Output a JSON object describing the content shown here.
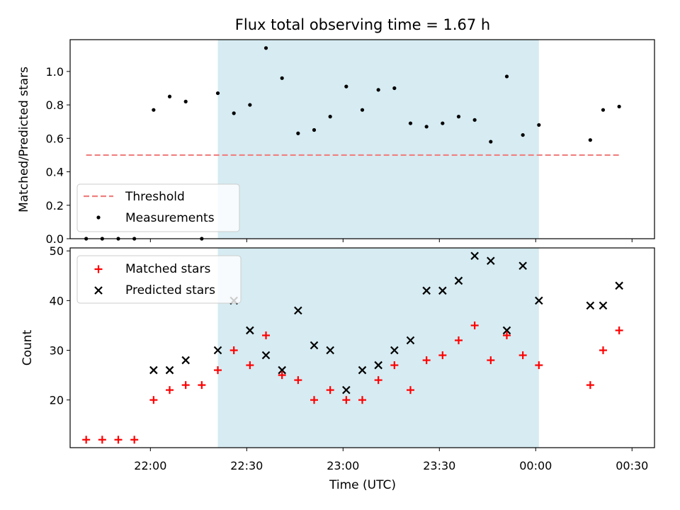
{
  "title": "Flux total observing time = 1.67 h",
  "colors": {
    "matched": "#ff0000",
    "predicted": "#000000",
    "threshold": "#f08080",
    "measurement": "#000000",
    "shade": "#add8e6"
  },
  "chart_data": [
    {
      "type": "scatter",
      "panel": "top",
      "ylabel": "Matched/Predicted stars",
      "ylim": [
        0,
        1.19
      ],
      "yticks": [
        "0.0",
        "0.2",
        "0.4",
        "0.6",
        "0.8",
        "1.0"
      ],
      "x_axis_time_range": [
        "21:35",
        "00:37"
      ],
      "shaded_interval": [
        "22:21",
        "00:01"
      ],
      "legend_position": "lower-left",
      "threshold": {
        "name": "Threshold",
        "value": 0.5,
        "x_range": [
          "21:40",
          "00:26"
        ]
      },
      "series": [
        {
          "name": "Measurements",
          "x": [
            "21:40",
            "21:45",
            "21:50",
            "21:55",
            "22:01",
            "22:06",
            "22:11",
            "22:16",
            "22:21",
            "22:26",
            "22:31",
            "22:36",
            "22:41",
            "22:46",
            "22:51",
            "22:56",
            "23:01",
            "23:06",
            "23:11",
            "23:16",
            "23:21",
            "23:26",
            "23:31",
            "23:36",
            "23:41",
            "23:46",
            "23:51",
            "23:56",
            "00:01",
            "00:17",
            "00:21",
            "00:26"
          ],
          "y": [
            0.0,
            0.0,
            0.0,
            0.0,
            0.77,
            0.85,
            0.82,
            0.0,
            0.87,
            0.75,
            0.8,
            1.14,
            0.96,
            0.63,
            0.65,
            0.73,
            0.91,
            0.77,
            0.89,
            0.9,
            0.69,
            0.67,
            0.69,
            0.73,
            0.71,
            0.58,
            0.97,
            0.62,
            0.68,
            0.59,
            0.77,
            0.79
          ]
        }
      ]
    },
    {
      "type": "scatter",
      "panel": "bottom",
      "xlabel": "Time (UTC)",
      "ylabel": "Count",
      "ylim": [
        10.4,
        50.6
      ],
      "yticks": [
        "20",
        "30",
        "40",
        "50"
      ],
      "xticks": [
        "22:00",
        "22:30",
        "23:00",
        "23:30",
        "00:00",
        "00:30"
      ],
      "x_axis_time_range": [
        "21:35",
        "00:37"
      ],
      "shaded_interval": [
        "22:21",
        "00:01"
      ],
      "legend_position": "upper-left",
      "series": [
        {
          "name": "Matched stars",
          "marker": "+",
          "x": [
            "21:40",
            "21:45",
            "21:50",
            "21:55",
            "22:01",
            "22:06",
            "22:11",
            "22:16",
            "22:21",
            "22:26",
            "22:31",
            "22:36",
            "22:41",
            "22:46",
            "22:51",
            "22:56",
            "23:01",
            "23:06",
            "23:11",
            "23:16",
            "23:21",
            "23:26",
            "23:31",
            "23:36",
            "23:41",
            "23:46",
            "23:51",
            "23:56",
            "00:01",
            "00:17",
            "00:21",
            "00:26"
          ],
          "y": [
            12,
            12,
            12,
            12,
            20,
            22,
            23,
            23,
            26,
            30,
            27,
            33,
            25,
            24,
            20,
            22,
            20,
            20,
            24,
            27,
            22,
            28,
            29,
            32,
            35,
            28,
            33,
            29,
            27,
            23,
            30,
            34
          ]
        },
        {
          "name": "Predicted stars",
          "marker": "x",
          "x": [
            "22:01",
            "22:06",
            "22:11",
            "22:21",
            "22:26",
            "22:31",
            "22:36",
            "22:41",
            "22:46",
            "22:51",
            "22:56",
            "23:01",
            "23:06",
            "23:11",
            "23:16",
            "23:21",
            "23:26",
            "23:31",
            "23:36",
            "23:41",
            "23:46",
            "23:51",
            "23:56",
            "00:01",
            "00:17",
            "00:21",
            "00:26"
          ],
          "y": [
            26,
            26,
            28,
            30,
            40,
            34,
            29,
            26,
            38,
            31,
            30,
            22,
            26,
            27,
            30,
            32,
            42,
            42,
            44,
            49,
            48,
            34,
            47,
            40,
            39,
            39,
            43
          ]
        }
      ]
    }
  ]
}
